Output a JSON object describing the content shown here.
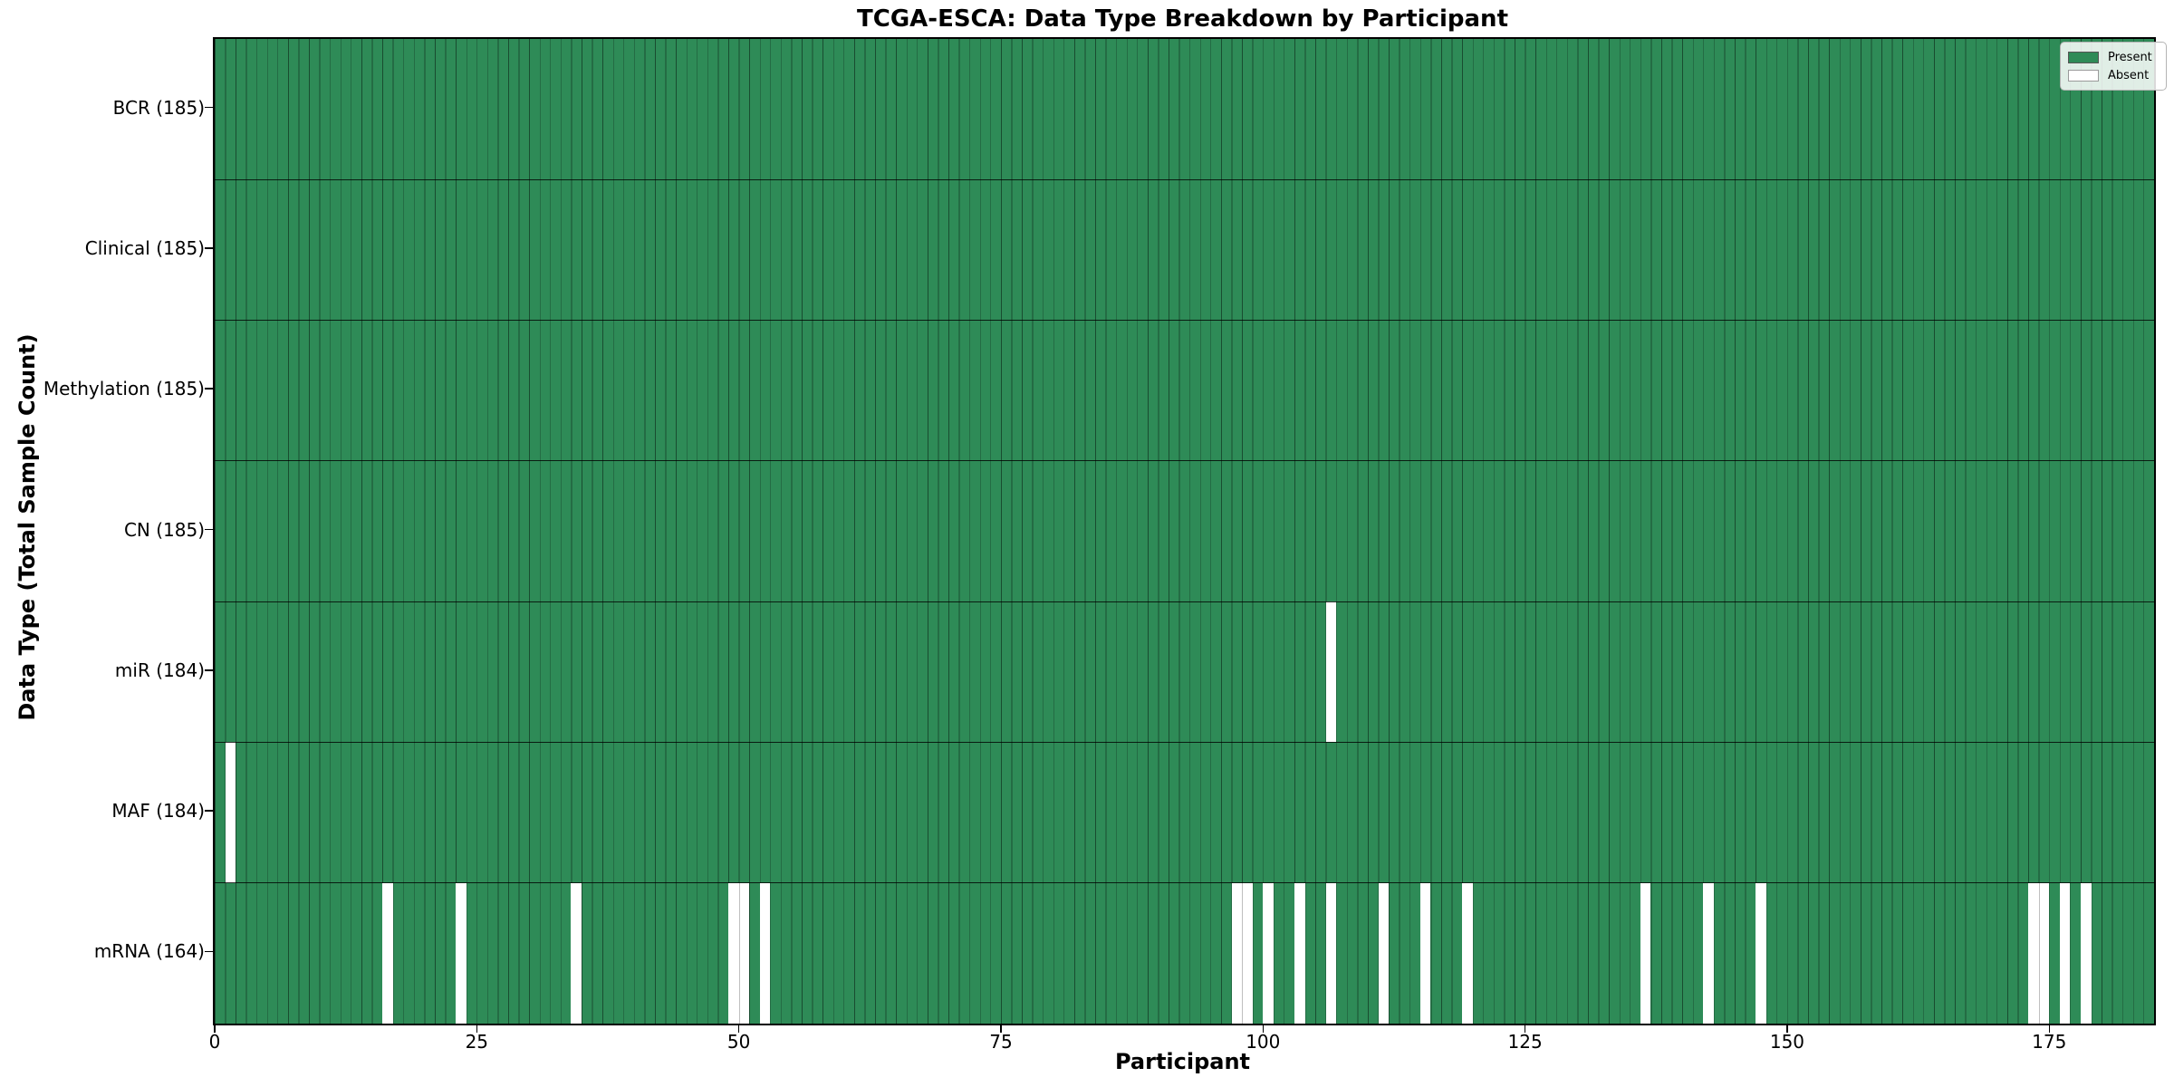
{
  "chart_data": {
    "type": "heatmap",
    "title": "TCGA-ESCA: Data Type Breakdown by Participant",
    "xlabel": "Participant",
    "ylabel": "Data Type (Total Sample Count)",
    "x_range": [
      0,
      185
    ],
    "x_ticks": [
      0,
      25,
      50,
      75,
      100,
      125,
      150,
      175
    ],
    "grid": "per-cell vertical edges, per-row horizontal edges",
    "legend_position": "upper right",
    "legend": [
      {
        "label": "Present",
        "color": "#2e8b57"
      },
      {
        "label": "Absent",
        "color": "#ffffff"
      }
    ],
    "rows": [
      {
        "label": "BCR (185)",
        "data_type": "BCR",
        "total_count": 185,
        "absent_participants": []
      },
      {
        "label": "Clinical (185)",
        "data_type": "Clinical",
        "total_count": 185,
        "absent_participants": []
      },
      {
        "label": "Methylation (185)",
        "data_type": "Methylation",
        "total_count": 185,
        "absent_participants": []
      },
      {
        "label": "CN (185)",
        "data_type": "CN",
        "total_count": 185,
        "absent_participants": []
      },
      {
        "label": "miR (184)",
        "data_type": "miR",
        "total_count": 184,
        "absent_participants": [
          106
        ]
      },
      {
        "label": "MAF (184)",
        "data_type": "MAF",
        "total_count": 184,
        "absent_participants": [
          1
        ]
      },
      {
        "label": "mRNA (164)",
        "data_type": "mRNA",
        "total_count": 164,
        "absent_participants": [
          16,
          23,
          34,
          49,
          50,
          52,
          97,
          98,
          100,
          103,
          106,
          111,
          115,
          119,
          136,
          142,
          147,
          173,
          174,
          176,
          178
        ]
      }
    ],
    "colors": {
      "present": "#2e8b57",
      "absent": "#ffffff",
      "cell_edge": "rgba(0,0,0,0.45)",
      "row_edge": "rgba(0,0,0,0.8)",
      "spine": "#000000"
    }
  }
}
